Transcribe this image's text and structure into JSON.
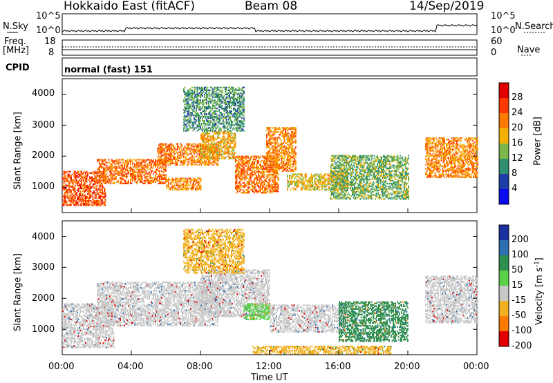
{
  "header": {
    "station": "Hokkaido East (fitACF)",
    "beam": "Beam 08",
    "date": "14/Sep/2019"
  },
  "status_panels": {
    "nsky_label": "N.Sky",
    "nsky_ticks": [
      "10^5",
      "10^0"
    ],
    "nsearch_label": "N.Search",
    "nsearch_ticks": [
      "10^5",
      "10^0"
    ],
    "freq_label": "Freq.",
    "freq_unit": "[MHz]",
    "freq_ticks": [
      "18",
      "8"
    ],
    "nave_label": "Nave",
    "nave_ticks": [
      "60",
      "0"
    ],
    "cpid_label": "CPID",
    "cpid_value": "normal (fast) 151"
  },
  "chart_data": [
    {
      "type": "heatmap",
      "name": "power",
      "ylabel": "Slant Range [km]",
      "yticks": [
        "4000",
        "3000",
        "2000",
        "1000"
      ],
      "ylim": [
        180,
        4500
      ],
      "xlim": [
        0,
        24
      ],
      "colorbar": {
        "label": "Power [dB]",
        "tick_labels": [
          "28",
          "24",
          "20",
          "16",
          "12",
          "8",
          "4"
        ],
        "colors": [
          "#e00000",
          "#ff3a00",
          "#ff7a00",
          "#f4b000",
          "#7ab648",
          "#2f8f6f",
          "#1f3fa8",
          "#0a0af0"
        ]
      },
      "echo_regions": [
        {
          "t0": 0.0,
          "t1": 2.5,
          "r0": 400,
          "r1": 1500,
          "level": 28
        },
        {
          "t0": 2.0,
          "t1": 6.0,
          "r0": 1100,
          "r1": 1900,
          "level": 26
        },
        {
          "t0": 5.5,
          "t1": 9.0,
          "r0": 1700,
          "r1": 2400,
          "level": 25
        },
        {
          "t0": 6.0,
          "t1": 8.0,
          "r0": 900,
          "r1": 1300,
          "level": 24
        },
        {
          "t0": 8.0,
          "t1": 10.0,
          "r0": 1900,
          "r1": 2800,
          "level": 22
        },
        {
          "t0": 10.0,
          "t1": 12.5,
          "r0": 800,
          "r1": 2000,
          "level": 26
        },
        {
          "t0": 11.8,
          "t1": 13.5,
          "r0": 1500,
          "r1": 2900,
          "level": 24
        },
        {
          "t0": 13.0,
          "t1": 16.5,
          "r0": 900,
          "r1": 1400,
          "level": 20
        },
        {
          "t0": 15.5,
          "t1": 20.0,
          "r0": 600,
          "r1": 2000,
          "level": 16
        },
        {
          "t0": 21.0,
          "t1": 24.0,
          "r0": 1300,
          "r1": 2600,
          "level": 24
        },
        {
          "t0": 7.0,
          "t1": 10.5,
          "r0": 2800,
          "r1": 4200,
          "level": 14
        }
      ]
    },
    {
      "type": "heatmap",
      "name": "velocity",
      "ylabel": "Slant Range [km]",
      "yticks": [
        "4000",
        "3000",
        "2000",
        "1000"
      ],
      "ylim": [
        180,
        4500
      ],
      "xlim": [
        0,
        24
      ],
      "xlabel": "Time UT",
      "xticks": [
        "00:00",
        "04:00",
        "08:00",
        "12:00",
        "16:00",
        "20:00",
        "00:00"
      ],
      "colorbar": {
        "label": "Velocity [m s",
        "label_sup": "-1",
        "label_close": "]",
        "tick_labels": [
          "200",
          "100",
          "50",
          "15",
          "-15",
          "-50",
          "-100",
          "-200"
        ],
        "colors": [
          "#1a2fa0",
          "#2e6fb0",
          "#2f8f4f",
          "#5bd14a",
          "#c8c8c8",
          "#f0b020",
          "#ff7a00",
          "#e00000"
        ]
      },
      "echo_regions": [
        {
          "t0": 0.0,
          "t1": 3.0,
          "r0": 400,
          "r1": 1800,
          "level": 0
        },
        {
          "t0": 2.0,
          "t1": 9.0,
          "r0": 1100,
          "r1": 2500,
          "level": 0
        },
        {
          "t0": 8.0,
          "t1": 12.0,
          "r0": 1400,
          "r1": 2900,
          "level": 0
        },
        {
          "t0": 10.5,
          "t1": 12.0,
          "r0": 1300,
          "r1": 1800,
          "level": 40
        },
        {
          "t0": 12.0,
          "t1": 16.5,
          "r0": 900,
          "r1": 1800,
          "level": 0
        },
        {
          "t0": 16.0,
          "t1": 20.0,
          "r0": 600,
          "r1": 1900,
          "level": 60
        },
        {
          "t0": 11.0,
          "t1": 19.0,
          "r0": 200,
          "r1": 450,
          "level": -40
        },
        {
          "t0": 21.0,
          "t1": 24.0,
          "r0": 1200,
          "r1": 2700,
          "level": 0
        },
        {
          "t0": 7.0,
          "t1": 10.5,
          "r0": 2800,
          "r1": 4200,
          "level": -30
        }
      ]
    }
  ]
}
